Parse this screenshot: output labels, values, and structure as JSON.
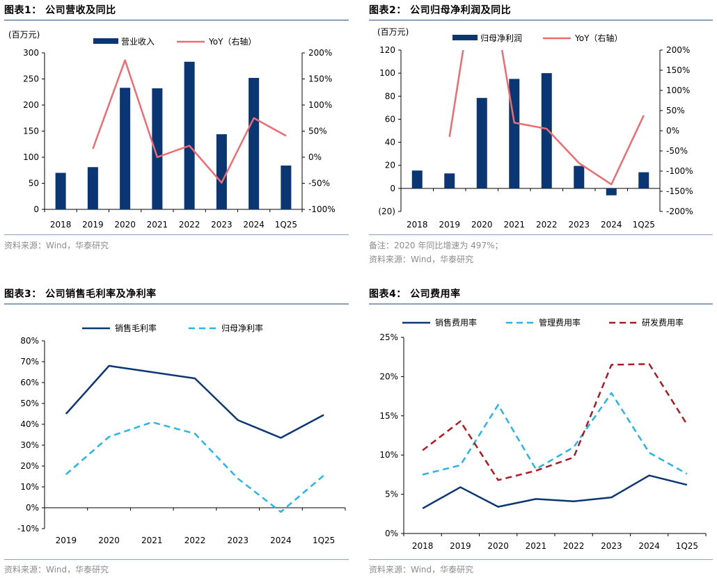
{
  "colors": {
    "navy": "#0b3674",
    "red": "#f16a6f",
    "cyan": "#23b5ec",
    "darkred": "#b11820",
    "rule": "#8a9fb8",
    "note": "#8c8c8c"
  },
  "figures": {
    "f1": {
      "title": "图表1： 公司营收及同比",
      "source": "资料来源：Wind，华泰研究"
    },
    "f2": {
      "title": "图表2： 公司归母净利润及同比",
      "note": "备注：2020 年同比增速为 497%；",
      "source": "资料来源：Wind，华泰研究"
    },
    "f3": {
      "title": "图表3： 公司销售毛利率及净利率",
      "source": "资料来源：Wind，华泰研究"
    },
    "f4": {
      "title": "图表4： 公司费用率",
      "source": "资料来源：Wind，华泰研究"
    }
  },
  "chart_data": [
    {
      "id": "c1",
      "type": "bar+line",
      "unit_label": "(百万元)",
      "categories": [
        "2018",
        "2019",
        "2020",
        "2021",
        "2022",
        "2023",
        "2024",
        "1Q25"
      ],
      "bar_series": {
        "name": "营业收入",
        "values": [
          70,
          81,
          233,
          232,
          283,
          144,
          252,
          84
        ]
      },
      "line_series": {
        "name": "YoY（右轴）",
        "values": [
          null,
          16,
          186,
          0,
          22,
          -49,
          75,
          41
        ]
      },
      "left_ticks": [
        "0",
        "50",
        "100",
        "150",
        "200",
        "250",
        "300"
      ],
      "ylim": [
        0,
        300
      ],
      "right_ticks": [
        "-100%",
        "-50%",
        "0%",
        "50%",
        "100%",
        "150%",
        "200%"
      ],
      "y2lim": [
        -100,
        200
      ]
    },
    {
      "id": "c2",
      "type": "bar+line",
      "unit_label": "(百万元)",
      "categories": [
        "2018",
        "2019",
        "2020",
        "2021",
        "2022",
        "2023",
        "2024",
        "1Q25"
      ],
      "bar_series": {
        "name": "归母净利润",
        "values": [
          15.5,
          13,
          78.5,
          95,
          100,
          19.5,
          -6,
          14
        ]
      },
      "line_series": {
        "name": "YoY（右轴）",
        "values": [
          null,
          -15,
          497,
          20,
          5,
          -80,
          -133,
          38
        ]
      },
      "left_ticks": [
        "(20)",
        "0",
        "20",
        "40",
        "60",
        "80",
        "100",
        "120"
      ],
      "ylim": [
        -20,
        120
      ],
      "right_ticks": [
        "-200%",
        "-150%",
        "-100%",
        "-50%",
        "0%",
        "50%",
        "100%",
        "150%",
        "200%"
      ],
      "y2lim": [
        -200,
        200
      ]
    },
    {
      "id": "c3",
      "type": "line",
      "categories": [
        "2019",
        "2020",
        "2021",
        "2022",
        "2023",
        "2024",
        "1Q25"
      ],
      "series": [
        {
          "name": "销售毛利率",
          "style": "solid",
          "values": [
            45,
            68,
            65,
            62,
            42,
            33.5,
            44.5
          ]
        },
        {
          "name": "归母净利率",
          "style": "dashed",
          "values": [
            16,
            34,
            41,
            35.5,
            14,
            -2,
            15.5
          ]
        }
      ],
      "left_ticks": [
        "-10%",
        "0%",
        "10%",
        "20%",
        "30%",
        "40%",
        "50%",
        "60%",
        "70%",
        "80%"
      ],
      "ylim": [
        -10,
        80
      ]
    },
    {
      "id": "c4",
      "type": "line",
      "categories": [
        "2018",
        "2019",
        "2020",
        "2021",
        "2022",
        "2023",
        "2024",
        "1Q25"
      ],
      "series": [
        {
          "name": "销售费用率",
          "style": "solid",
          "values": [
            3.2,
            5.9,
            3.4,
            4.4,
            4.1,
            4.6,
            7.4,
            6.2
          ]
        },
        {
          "name": "管理费用率",
          "style": "dashed",
          "values": [
            7.5,
            8.7,
            16.4,
            8.2,
            11,
            17.9,
            10.3,
            7.6
          ]
        },
        {
          "name": "研发费用率",
          "style": "dashed",
          "values": [
            10.6,
            14.3,
            6.8,
            8,
            9.7,
            21.5,
            21.6,
            13.9
          ]
        }
      ],
      "left_ticks": [
        "0%",
        "5%",
        "10%",
        "15%",
        "20%",
        "25%"
      ],
      "ylim": [
        0,
        25
      ]
    }
  ]
}
